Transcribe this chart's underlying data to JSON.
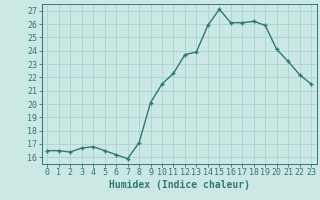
{
  "x": [
    0,
    1,
    2,
    3,
    4,
    5,
    6,
    7,
    8,
    9,
    10,
    11,
    12,
    13,
    14,
    15,
    16,
    17,
    18,
    19,
    20,
    21,
    22,
    23
  ],
  "y": [
    16.5,
    16.5,
    16.4,
    16.7,
    16.8,
    16.5,
    16.2,
    15.9,
    17.1,
    20.1,
    21.5,
    22.3,
    23.7,
    23.9,
    25.9,
    27.1,
    26.1,
    26.1,
    26.2,
    25.9,
    24.1,
    23.2,
    22.2,
    21.5
  ],
  "line_color": "#2d7a6e",
  "marker_color": "#2d7a6e",
  "bg_color": "#cce8e5",
  "grid_color": "#a8d4d0",
  "xlabel": "Humidex (Indice chaleur)",
  "ylim": [
    15.5,
    27.5
  ],
  "xlim": [
    -0.5,
    23.5
  ],
  "yticks": [
    16,
    17,
    18,
    19,
    20,
    21,
    22,
    23,
    24,
    25,
    26,
    27
  ],
  "xticks": [
    0,
    1,
    2,
    3,
    4,
    5,
    6,
    7,
    8,
    9,
    10,
    11,
    12,
    13,
    14,
    15,
    16,
    17,
    18,
    19,
    20,
    21,
    22,
    23
  ],
  "tick_color": "#2d7a6e",
  "label_fontsize": 6.0,
  "xlabel_fontsize": 7.0,
  "axis_color": "#2d7a6e",
  "linewidth": 1.0,
  "markersize": 3.5
}
